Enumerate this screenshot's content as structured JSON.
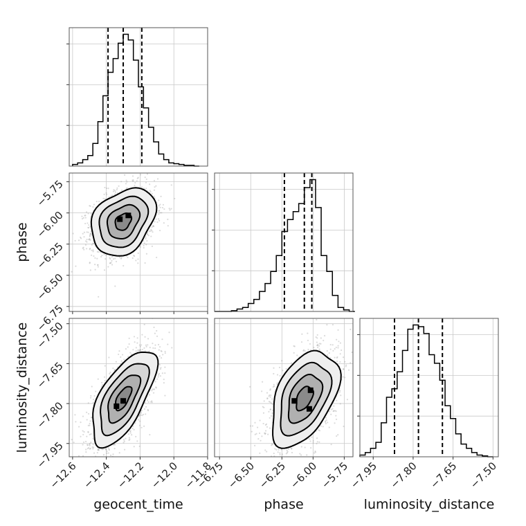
{
  "chart_data": {
    "type": "corner",
    "parameters": [
      "geocent_time",
      "phase",
      "luminosity_distance"
    ],
    "ranges": {
      "geocent_time": [
        -12.62,
        -11.8
      ],
      "phase": [
        -6.79,
        -5.68
      ],
      "luminosity_distance": [
        -8.0,
        -7.48
      ]
    },
    "ticks": {
      "geocent_time": [
        -12.6,
        -12.4,
        -12.2,
        -12.0,
        -11.8
      ],
      "phase": [
        -6.75,
        -6.5,
        -6.25,
        -6.0,
        -5.75
      ],
      "luminosity_distance": [
        -7.95,
        -7.8,
        -7.65,
        -7.5
      ]
    },
    "tick_labels": {
      "geocent_time": [
        "−12.6",
        "−12.4",
        "−12.2",
        "−12.0",
        "−11.8"
      ],
      "phase": [
        "−6.75",
        "−6.50",
        "−6.25",
        "−6.00",
        "−5.75"
      ],
      "luminosity_distance": [
        "−7.95",
        "−7.80",
        "−7.65",
        "−7.50"
      ]
    },
    "medians": {
      "geocent_time": -12.3,
      "phase": -6.07,
      "luminosity_distance": -7.78
    },
    "quantiles_16_84": {
      "geocent_time": [
        -12.39,
        -12.19
      ],
      "phase": [
        -6.23,
        -6.01
      ],
      "luminosity_distance": [
        -7.87,
        -7.69
      ]
    },
    "histograms": {
      "geocent_time": {
        "edges": [
          -12.6,
          -12.57,
          -12.54,
          -12.51,
          -12.48,
          -12.45,
          -12.42,
          -12.39,
          -12.36,
          -12.33,
          -12.3,
          -12.27,
          -12.24,
          -12.21,
          -12.18,
          -12.15,
          -12.12,
          -12.09,
          -12.06,
          -12.03,
          -12.0,
          -11.97,
          -11.94,
          -11.91,
          -11.88,
          -11.85
        ],
        "counts": [
          2,
          4,
          8,
          13,
          28,
          55,
          87,
          116,
          133,
          152,
          163,
          156,
          131,
          98,
          72,
          48,
          30,
          15,
          8,
          4,
          3,
          2,
          1,
          1,
          0
        ]
      },
      "phase": {
        "edges": [
          -6.79,
          -6.745,
          -6.7,
          -6.655,
          -6.61,
          -6.565,
          -6.52,
          -6.475,
          -6.43,
          -6.385,
          -6.34,
          -6.295,
          -6.25,
          -6.205,
          -6.16,
          -6.115,
          -6.07,
          -6.025,
          -5.98,
          -5.935,
          -5.89,
          -5.845,
          -5.8,
          -5.755,
          -5.71,
          -5.665
        ],
        "counts": [
          0,
          0,
          0,
          1,
          3,
          5,
          10,
          15,
          25,
          35,
          50,
          70,
          100,
          115,
          125,
          135,
          155,
          165,
          130,
          70,
          50,
          20,
          5,
          2,
          0
        ]
      },
      "luminosity_distance": {
        "edges": [
          -8.0,
          -7.98,
          -7.96,
          -7.94,
          -7.92,
          -7.9,
          -7.88,
          -7.86,
          -7.84,
          -7.82,
          -7.8,
          -7.78,
          -7.76,
          -7.74,
          -7.72,
          -7.7,
          -7.68,
          -7.66,
          -7.64,
          -7.62,
          -7.6,
          -7.58,
          -7.56,
          -7.54,
          -7.52,
          -7.5
        ],
        "counts": [
          2,
          5,
          10,
          17,
          40,
          70,
          80,
          100,
          125,
          150,
          155,
          153,
          145,
          120,
          110,
          90,
          60,
          45,
          27,
          15,
          10,
          5,
          2,
          1,
          0
        ]
      }
    },
    "scatter_2d": [
      {
        "x": "geocent_time",
        "y": "phase",
        "center": [
          -12.3,
          -6.07
        ],
        "sigma": [
          0.095,
          0.135
        ],
        "rho": 0.3,
        "modes": [
          [
            -12.27,
            -6.02
          ],
          [
            -12.32,
            -6.05
          ]
        ]
      },
      {
        "x": "geocent_time",
        "y": "luminosity_distance",
        "center": [
          -12.3,
          -7.78
        ],
        "sigma": [
          0.095,
          0.09
        ],
        "rho": 0.65,
        "modes": [
          [
            -12.3,
            -7.79
          ],
          [
            -12.34,
            -7.81
          ]
        ]
      },
      {
        "x": "phase",
        "y": "luminosity_distance",
        "center": [
          -6.07,
          -7.78
        ],
        "sigma": [
          0.135,
          0.09
        ],
        "rho": 0.45,
        "modes": [
          [
            -6.15,
            -7.79
          ],
          [
            -6.02,
            -7.75
          ],
          [
            -6.03,
            -7.82
          ]
        ]
      }
    ],
    "contour_levels_sigma": [
      0.5,
      1.0,
      1.5,
      2.0
    ],
    "axis_labels": {
      "x": [
        "geocent_time",
        "phase",
        "luminosity_distance"
      ],
      "y": [
        "",
        "phase",
        "luminosity_distance"
      ]
    }
  }
}
